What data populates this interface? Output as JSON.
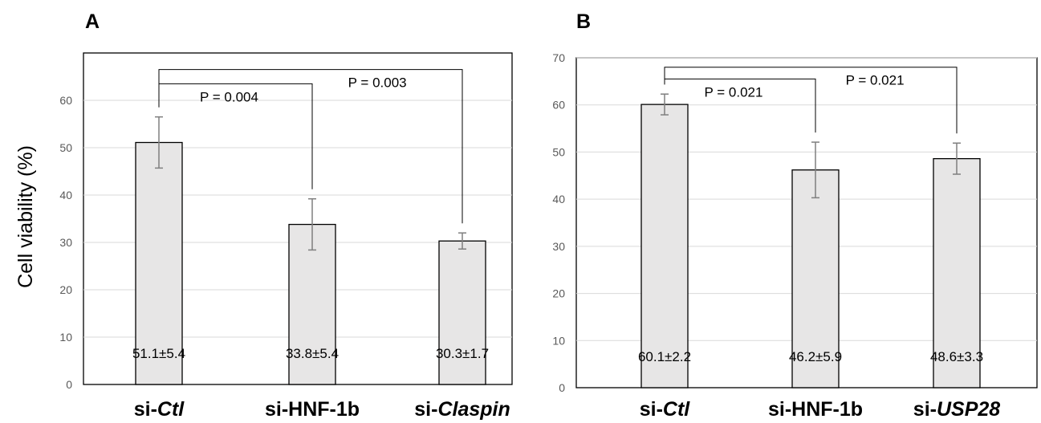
{
  "chart_data": [
    {
      "panel": "A",
      "type": "bar",
      "ylabel": "Cell viability (%)",
      "ylim": [
        0,
        70
      ],
      "yticks": [
        0,
        10,
        20,
        30,
        40,
        50,
        60
      ],
      "grid": true,
      "categories": [
        {
          "prefix": "si-",
          "italic": "Ctl"
        },
        {
          "prefix": "si-HNF-1b",
          "italic": ""
        },
        {
          "prefix": "si-",
          "italic": "Claspin"
        }
      ],
      "values": [
        51.1,
        33.8,
        30.3
      ],
      "errors": [
        5.4,
        5.4,
        1.7
      ],
      "data_labels": [
        "51.1±5.4",
        "33.8±5.4",
        "30.3±1.7"
      ],
      "comparisons": [
        {
          "from": 0,
          "to": 1,
          "label": "P = 0.004",
          "bracket_y": 63.5
        },
        {
          "from": 0,
          "to": 2,
          "label": "P = 0.003",
          "bracket_y": 66.5
        }
      ]
    },
    {
      "panel": "B",
      "type": "bar",
      "ylabel": "",
      "ylim": [
        0,
        70
      ],
      "yticks": [
        0,
        10,
        20,
        30,
        40,
        50,
        60,
        70
      ],
      "grid": true,
      "categories": [
        {
          "prefix": "si-",
          "italic": "Ctl"
        },
        {
          "prefix": "si-HNF-1b",
          "italic": ""
        },
        {
          "prefix": "si-",
          "italic": "USP28"
        }
      ],
      "values": [
        60.1,
        46.2,
        48.6
      ],
      "errors": [
        2.2,
        5.9,
        3.3
      ],
      "data_labels": [
        "60.1±2.2",
        "46.2±5.9",
        "48.6±3.3"
      ],
      "comparisons": [
        {
          "from": 0,
          "to": 1,
          "label": "P = 0.021",
          "bracket_y": 65.5
        },
        {
          "from": 0,
          "to": 2,
          "label": "P = 0.021",
          "bracket_y": 68
        }
      ]
    }
  ]
}
